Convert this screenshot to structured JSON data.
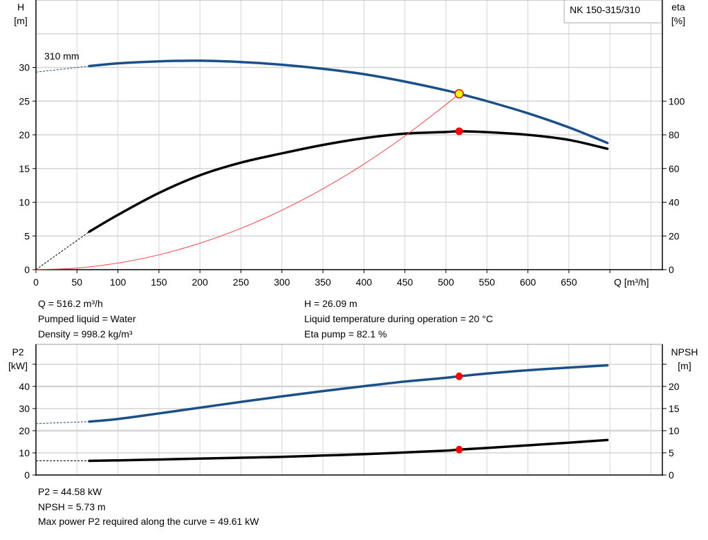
{
  "chart_data": [
    {
      "type": "line",
      "title": "NK 150-315/310",
      "legend_placement": "top-right",
      "grid": true,
      "x": {
        "label": "Q [m³/h]",
        "lim": [
          0,
          764
        ],
        "ticks": [
          0,
          50,
          100,
          150,
          200,
          250,
          300,
          350,
          400,
          450,
          500,
          550,
          600,
          650
        ]
      },
      "y_left": {
        "label_line1": "H",
        "label_line2": "[m]",
        "lim": [
          0,
          40
        ],
        "ticks": [
          0,
          5,
          10,
          15,
          20,
          25,
          30
        ]
      },
      "y_right": {
        "label_line1": "eta",
        "label_line2": "[%]",
        "lim": [
          0,
          160
        ],
        "ticks": [
          0,
          20,
          40,
          60,
          80,
          100
        ]
      },
      "curve_label": "310 mm",
      "series": [
        {
          "key": "head",
          "axis": "left",
          "color": "#1a4f8a",
          "extrapolated": {
            "x": [
              0,
              65
            ],
            "y": [
              29.3,
              30.2
            ]
          },
          "x": [
            65,
            100,
            150,
            200,
            250,
            300,
            350,
            400,
            450,
            500,
            516.2,
            550,
            600,
            650,
            697
          ],
          "y": [
            30.2,
            30.6,
            30.9,
            31.0,
            30.8,
            30.4,
            29.8,
            29.0,
            27.9,
            26.6,
            26.09,
            25.0,
            23.2,
            21.1,
            18.8
          ]
        },
        {
          "key": "eta",
          "axis": "right",
          "color": "#000000",
          "extrapolated": {
            "x": [
              0,
              65
            ],
            "y": [
              0,
              22.5
            ]
          },
          "x": [
            65,
            100,
            150,
            200,
            250,
            300,
            350,
            400,
            450,
            500,
            516.2,
            550,
            600,
            650,
            697
          ],
          "y": [
            22.5,
            32.5,
            45.5,
            56,
            63.5,
            69,
            74,
            78,
            80.7,
            81.7,
            82.1,
            81.6,
            80,
            77,
            71.7
          ]
        },
        {
          "key": "system",
          "axis": "left",
          "color": "#ff4040",
          "x": [
            0,
            50,
            100,
            150,
            200,
            250,
            300,
            350,
            400,
            450,
            500,
            516.2
          ],
          "y": [
            0,
            0.24,
            0.98,
            2.2,
            3.92,
            6.12,
            8.81,
            11.99,
            15.66,
            19.82,
            24.48,
            26.09
          ]
        }
      ],
      "operating_point": {
        "Q": 516.2,
        "H": 26.09,
        "eta": 82.1
      }
    },
    {
      "type": "line",
      "grid": true,
      "x": {
        "lim": [
          0,
          764
        ],
        "ticks": [
          0,
          50,
          100,
          150,
          200,
          250,
          300,
          350,
          400,
          450,
          500,
          550,
          600,
          650,
          700,
          750
        ]
      },
      "y_left": {
        "label_line1": "P2",
        "label_line2": "[kW]",
        "lim": [
          0,
          59
        ],
        "ticks": [
          0,
          10,
          20,
          30,
          40,
          50
        ],
        "tick_labels": [
          "0",
          "10",
          "20",
          "30",
          "40",
          ""
        ]
      },
      "y_right": {
        "label_line1": "NPSH",
        "label_line2": "[m]",
        "lim": [
          0,
          29.5
        ],
        "ticks": [
          0,
          5,
          10,
          15,
          20,
          25
        ],
        "tick_labels": [
          "0",
          "5",
          "10",
          "15",
          "20",
          ""
        ]
      },
      "series": [
        {
          "key": "p2",
          "axis": "left",
          "color": "#1a4f8a",
          "extrapolated": {
            "x": [
              0,
              65
            ],
            "y": [
              23.2,
              24.1
            ]
          },
          "x": [
            65,
            100,
            150,
            200,
            250,
            300,
            350,
            400,
            450,
            500,
            516.2,
            550,
            600,
            650,
            697
          ],
          "y": [
            24.1,
            25.3,
            27.8,
            30.4,
            33.0,
            35.5,
            37.9,
            40.1,
            42.2,
            43.9,
            44.58,
            45.8,
            47.3,
            48.5,
            49.5
          ]
        },
        {
          "key": "npsh",
          "axis": "right",
          "color": "#000000",
          "extrapolated": {
            "x": [
              0,
              65
            ],
            "y": [
              3.2,
              3.2
            ]
          },
          "x": [
            65,
            100,
            150,
            200,
            250,
            300,
            350,
            400,
            450,
            500,
            516.2,
            550,
            600,
            650,
            697
          ],
          "y": [
            3.2,
            3.3,
            3.5,
            3.7,
            3.9,
            4.1,
            4.4,
            4.7,
            5.1,
            5.5,
            5.73,
            6.1,
            6.7,
            7.3,
            7.9
          ]
        }
      ],
      "operating_point": {
        "Q": 516.2,
        "P2": 44.58,
        "NPSH": 5.73
      }
    }
  ],
  "info_top": {
    "q": "Q = 516.2 m³/h",
    "liquid": "Pumped liquid = Water",
    "density": "Density = 998.2 kg/m³",
    "h": "H = 26.09 m",
    "temp": "Liquid temperature during operation = 20 °C",
    "eta": "Eta pump = 82.1 %"
  },
  "info_bottom": {
    "p2": "P2 = 44.58 kW",
    "npsh": "NPSH = 5.73 m",
    "max_power": "Max power P2 required along the curve = 49.61 kW"
  },
  "colors": {
    "grid": "#d4d4d4",
    "head": "#1a4f8a",
    "eta": "#000000",
    "system": "#ff4040",
    "op_fill": "#ffff00",
    "op_stroke": "#ff0000"
  }
}
